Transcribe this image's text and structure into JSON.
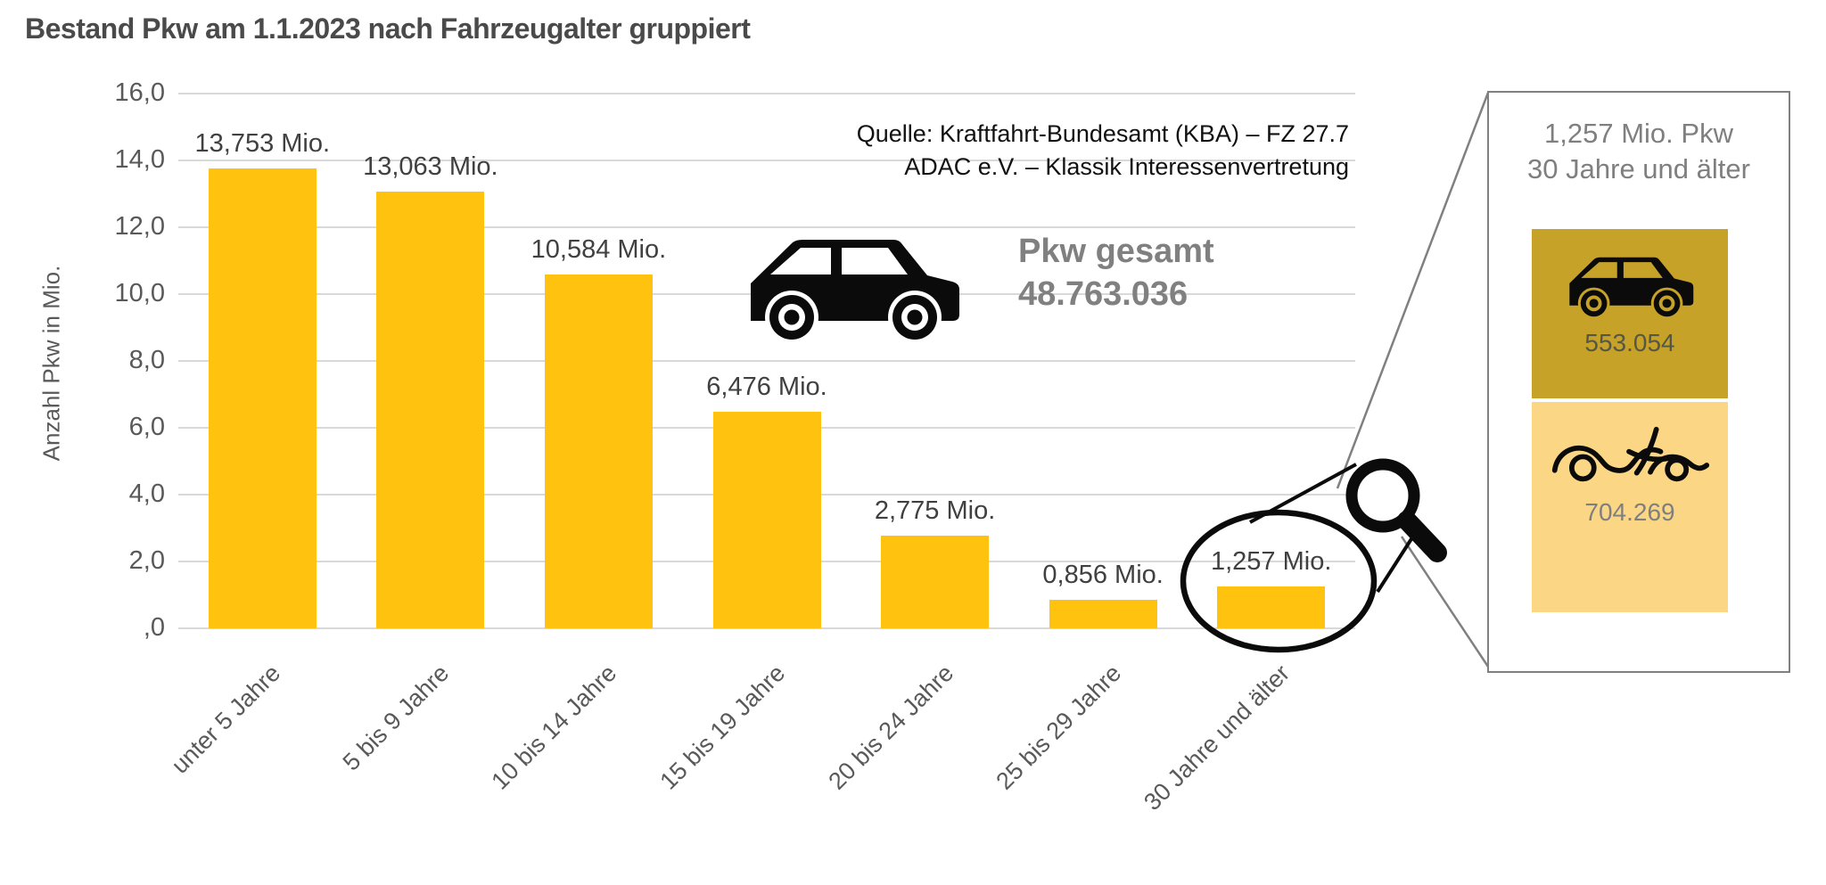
{
  "title": "Bestand Pkw am 1.1.2023 nach Fahrzeugalter gruppiert",
  "source": {
    "line1": "Quelle: Kraftfahrt-Bundesamt (KBA) – FZ 27.7",
    "line2": "ADAC e.V. – Klassik Interessenvertretung"
  },
  "total": {
    "label": "Pkw gesamt",
    "value": "48.763.036"
  },
  "panel": {
    "title_line1": "1,257 Mio. Pkw",
    "title_line2": "30 Jahre und älter",
    "car_count": "553.054",
    "oldtimer_count": "704.269",
    "car_box_color": "#C7A229",
    "oldtimer_box_color": "#FAD685",
    "border_color": "#808080"
  },
  "chart_data": {
    "type": "bar",
    "title": "Bestand Pkw am 1.1.2023 nach Fahrzeugalter gruppiert",
    "categories": [
      "unter 5 Jahre",
      "5 bis 9 Jahre",
      "10 bis 14 Jahre",
      "15 bis 19 Jahre",
      "20 bis 24 Jahre",
      "25 bis 29 Jahre",
      "30 Jahre und älter"
    ],
    "values": [
      13.753,
      13.063,
      10.584,
      6.476,
      2.775,
      0.856,
      1.257
    ],
    "value_labels": [
      "13,753 Mio.",
      "13,063 Mio.",
      "10,584 Mio.",
      "6,476 Mio.",
      "2,775 Mio.",
      "0,856 Mio.",
      "1,257 Mio."
    ],
    "xlabel": "",
    "ylabel": "Anzahl Pkw in Mio.",
    "ylim": [
      0,
      16
    ],
    "ytick_step": 2,
    "ytick_labels": [
      ",0",
      "2,0",
      "4,0",
      "6,0",
      "8,0",
      "10,0",
      "12,0",
      "14,0",
      "16,0"
    ],
    "grid": true,
    "legend": "none",
    "bar_color": "#FFC20E",
    "grid_color": "#d9d9d9",
    "annotation": {
      "highlighted_category": "30 Jahre und älter",
      "highlighted_value_label": "1,257 Mio."
    }
  }
}
